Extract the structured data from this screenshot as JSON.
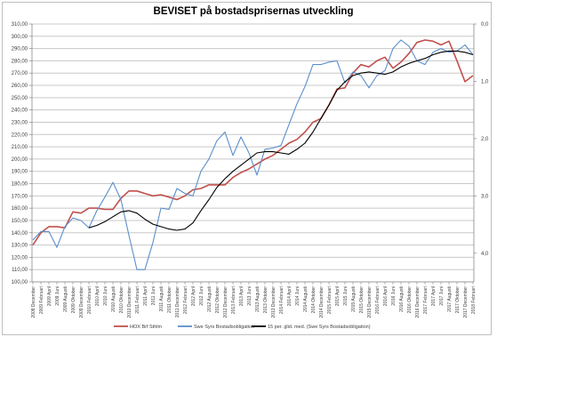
{
  "chart_data": {
    "type": "line",
    "title": "BEVISET på bostadsprisernas utveckling",
    "xlabel": "",
    "ylabel": "",
    "ylim": [
      100,
      310
    ],
    "y_ticks": [
      "100,00",
      "110,00",
      "120,00",
      "130,00",
      "140,00",
      "150,00",
      "160,00",
      "170,00",
      "180,00",
      "190,00",
      "200,00",
      "210,00",
      "220,00",
      "230,00",
      "240,00",
      "250,00",
      "260,00",
      "270,00",
      "280,00",
      "290,00",
      "300,00",
      "310,00"
    ],
    "y2lim": [
      0,
      4.5
    ],
    "y2_inverted": true,
    "y2_ticks": [
      "0,0",
      "1,0",
      "2,0",
      "3,0",
      "4,0"
    ],
    "grid": true,
    "legend_position": "bottom",
    "categories": [
      "2008 December",
      "2009 Februari",
      "2009 April",
      "2009 Juni",
      "2009 Augusti",
      "2009 Oktober",
      "2009 December",
      "2010 Februari",
      "2010 April",
      "2010 Juni",
      "2010 Augusti",
      "2010 Oktober",
      "2010 December",
      "2011 Februari",
      "2011 April",
      "2011 Juni",
      "2011 Augusti",
      "2011 Oktober",
      "2011 December",
      "2012 Februari",
      "2012 April",
      "2012 Juni",
      "2012 Augusti",
      "2012 Oktober",
      "2012 December",
      "2013 Februari",
      "2013 April",
      "2013 Juni",
      "2013 Augusti",
      "2013 Oktober",
      "2013 December",
      "2014 Februari",
      "2014 April",
      "2014 Juni",
      "2014 Augusti",
      "2014 Oktober",
      "2014 December",
      "2015 Februari",
      "2015 April",
      "2015 Juni",
      "2015 Augusti",
      "2015 Oktober",
      "2015 December",
      "2016 Februari",
      "2016 April",
      "2016 Juni",
      "2016 Augusti",
      "2016 Oktober",
      "2016 December",
      "2017 Februari",
      "2017 April",
      "2017 Juni",
      "2017 Augusti",
      "2017 Oktober",
      "2017 December",
      "2018 Februari"
    ],
    "series": [
      {
        "name": "HOX Brf Sthlm",
        "color": "#c0504d",
        "values": [
          130,
          140,
          145,
          145,
          144,
          157,
          156,
          160,
          160,
          159,
          159,
          168,
          174,
          174,
          172,
          170,
          171,
          169,
          167,
          170,
          175,
          176,
          179,
          179,
          179,
          185,
          189,
          192,
          196,
          200,
          203,
          208,
          213,
          216,
          222,
          230,
          233,
          244,
          257,
          258,
          270,
          277,
          275,
          280,
          283,
          274,
          279,
          286,
          295,
          297,
          296,
          293,
          296,
          280,
          263,
          268
        ]
      },
      {
        "name": "Swe Syrs Bostadsobligation",
        "color": "#5b8fcb",
        "values": [
          134,
          141,
          141,
          128,
          145,
          152,
          150,
          144,
          158,
          169,
          181,
          167,
          138,
          110,
          110,
          132,
          160,
          159,
          176,
          172,
          170,
          190,
          200,
          215,
          222,
          203,
          218,
          205,
          187,
          208,
          209,
          211,
          228,
          245,
          259,
          277,
          277,
          279,
          280,
          262,
          271,
          268,
          258,
          268,
          272,
          290,
          297,
          292,
          280,
          277,
          287,
          290,
          287,
          288,
          293,
          285
        ]
      },
      {
        "name": "15 per. glid. med. (Swe Syrs Bostadsobligation)",
        "color": "#000000",
        "values": [
          null,
          null,
          null,
          null,
          null,
          null,
          null,
          144,
          146,
          149,
          153,
          157,
          158,
          156,
          151,
          147,
          145,
          143,
          142,
          143,
          148,
          158,
          167,
          177,
          184,
          190,
          195,
          200,
          205,
          206,
          206,
          205,
          204,
          208,
          213,
          222,
          233,
          244,
          256,
          263,
          268,
          270,
          271,
          270,
          269,
          271,
          275,
          278,
          280,
          282,
          285,
          287,
          288,
          288,
          287,
          285
        ]
      }
    ]
  }
}
